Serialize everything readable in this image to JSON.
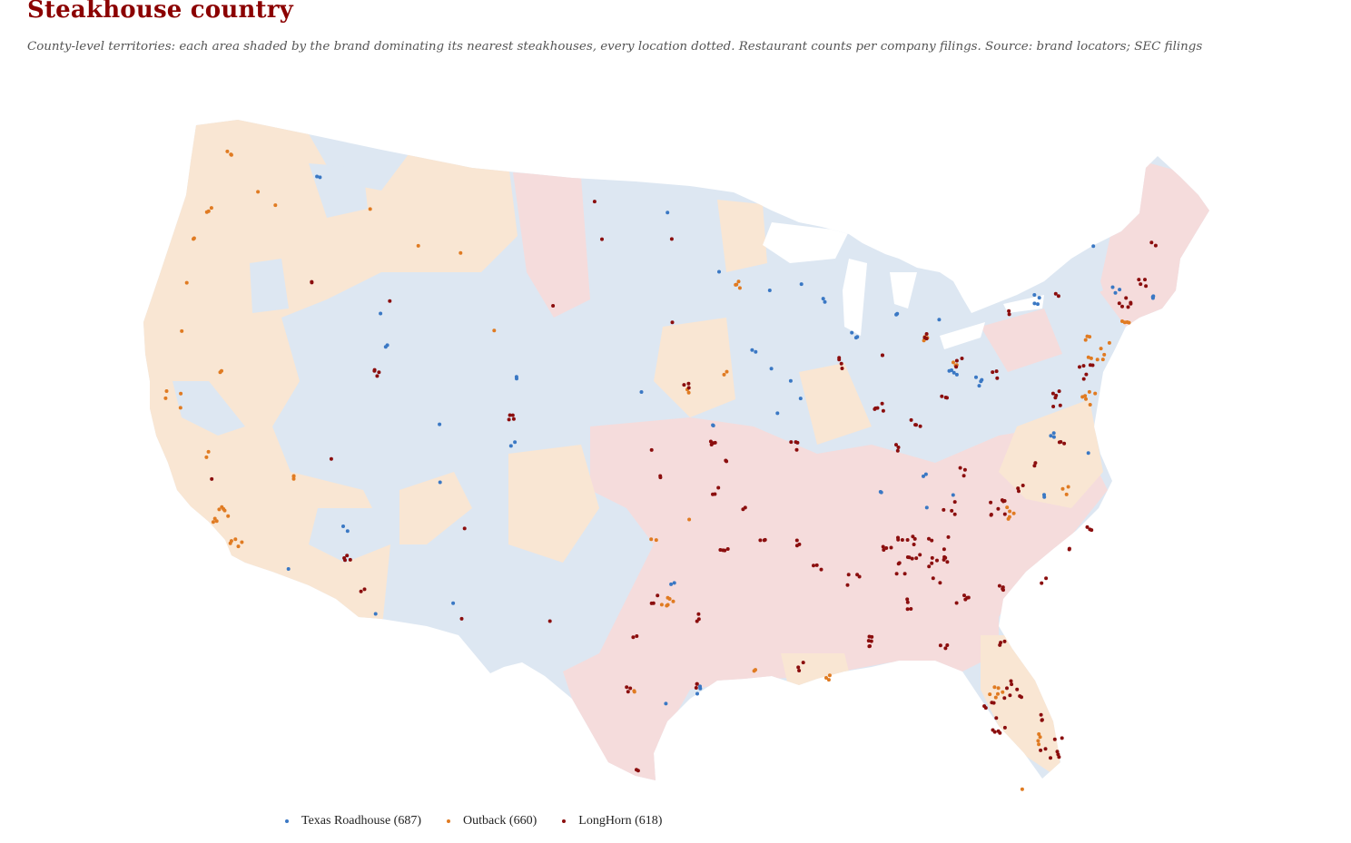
{
  "header": {
    "title": "Steakhouse country",
    "subtitle": "County-level territories: each area shaded by the brand dominating its nearest steakhouses, every location dotted. Restaurant counts per company filings. Source: brand locators; SEC filings"
  },
  "legend": {
    "items": [
      {
        "label": "Texas Roadhouse (687)",
        "color": "#3a78c4"
      },
      {
        "label": "Outback (660)",
        "color": "#e07b22"
      },
      {
        "label": "LongHorn (618)",
        "color": "#8b0e0e"
      }
    ]
  },
  "territory_colors": {
    "texas_roadhouse": "#dde7f2",
    "outback": "#f9e6d3",
    "longhorn": "#f5dcdc"
  }
}
